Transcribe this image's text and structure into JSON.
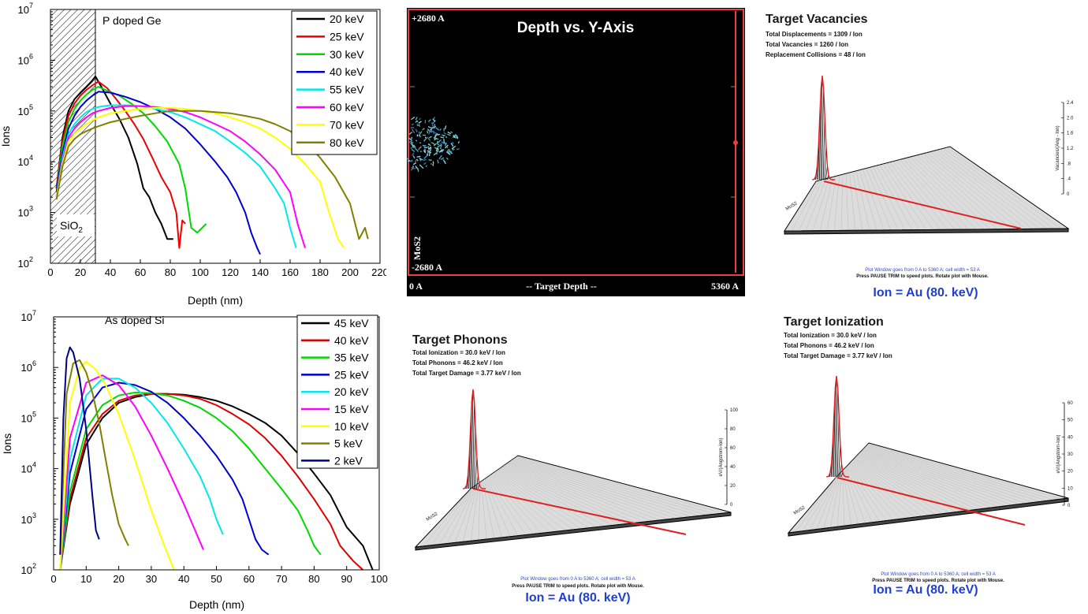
{
  "chart_data": [
    {
      "type": "line",
      "id": "ge",
      "annotation": "P doped Ge",
      "region_label": "SiO",
      "region_label_sub": "2",
      "region_end": 30,
      "xlabel": "Depth (nm)",
      "ylabel": "Ions",
      "xlim": [
        0,
        220
      ],
      "ylim": [
        100,
        10000000
      ],
      "yscale": "log",
      "x_ticks": [
        "0",
        "20",
        "40",
        "60",
        "80",
        "100",
        "120",
        "140",
        "160",
        "180",
        "200",
        "220"
      ],
      "y_ticks": [
        {
          "base": "10",
          "exp": "2"
        },
        {
          "base": "10",
          "exp": "3"
        },
        {
          "base": "10",
          "exp": "4"
        },
        {
          "base": "10",
          "exp": "5"
        },
        {
          "base": "10",
          "exp": "6"
        },
        {
          "base": "10",
          "exp": "7"
        }
      ],
      "legend_position": "top-right",
      "series": [
        {
          "name": "20 keV",
          "color": "#000000",
          "x": [
            4,
            8,
            12,
            16,
            20,
            24,
            28,
            30,
            34,
            40,
            46,
            52,
            58,
            62,
            66,
            70,
            74,
            78,
            82
          ],
          "y": [
            3000,
            30000,
            100000,
            170000,
            230000,
            300000,
            400000,
            480000,
            300000,
            140000,
            70000,
            30000,
            9000,
            3000,
            2000,
            1000,
            600,
            300,
            300
          ]
        },
        {
          "name": "25 keV",
          "color": "#ee0000",
          "x": [
            4,
            8,
            12,
            16,
            20,
            24,
            28,
            32,
            38,
            44,
            50,
            56,
            62,
            68,
            74,
            80,
            84,
            86,
            88,
            90
          ],
          "y": [
            3000,
            25000,
            80000,
            140000,
            200000,
            260000,
            320000,
            380000,
            280000,
            170000,
            100000,
            55000,
            28000,
            12000,
            5000,
            2500,
            1000,
            200,
            700,
            600
          ]
        },
        {
          "name": "30 keV",
          "color": "#00d800",
          "x": [
            4,
            8,
            12,
            16,
            20,
            24,
            28,
            32,
            38,
            46,
            54,
            62,
            70,
            78,
            86,
            90,
            94,
            98,
            104
          ],
          "y": [
            2500,
            20000,
            60000,
            110000,
            160000,
            210000,
            260000,
            300000,
            250000,
            200000,
            140000,
            90000,
            50000,
            25000,
            9000,
            3000,
            500,
            400,
            600
          ]
        },
        {
          "name": "40 keV",
          "color": "#0000cc",
          "x": [
            4,
            8,
            12,
            16,
            20,
            24,
            28,
            32,
            40,
            50,
            60,
            70,
            80,
            90,
            100,
            110,
            118,
            124,
            130,
            134,
            138,
            140
          ],
          "y": [
            2500,
            15000,
            45000,
            80000,
            120000,
            160000,
            200000,
            240000,
            230000,
            190000,
            150000,
            110000,
            75000,
            45000,
            22000,
            10000,
            5000,
            2500,
            1000,
            400,
            200,
            150
          ]
        },
        {
          "name": "55 keV",
          "color": "#00e8e8",
          "x": [
            4,
            8,
            12,
            16,
            20,
            24,
            28,
            32,
            40,
            50,
            60,
            70,
            80,
            90,
            100,
            110,
            120,
            130,
            140,
            150,
            156,
            160,
            164
          ],
          "y": [
            2000,
            12000,
            35000,
            55000,
            75000,
            95000,
            110000,
            120000,
            130000,
            130000,
            125000,
            110000,
            95000,
            75000,
            55000,
            40000,
            25000,
            15000,
            8000,
            3000,
            1500,
            500,
            200
          ]
        },
        {
          "name": "60 keV",
          "color": "#ff00ff",
          "x": [
            4,
            8,
            12,
            16,
            20,
            24,
            28,
            32,
            40,
            50,
            60,
            70,
            80,
            90,
            100,
            110,
            120,
            130,
            140,
            150,
            160,
            165,
            170
          ],
          "y": [
            2000,
            10000,
            30000,
            45000,
            60000,
            75000,
            90000,
            100000,
            115000,
            125000,
            125000,
            120000,
            110000,
            95000,
            75000,
            55000,
            40000,
            25000,
            14000,
            7000,
            2500,
            600,
            200
          ]
        },
        {
          "name": "70 keV",
          "color": "#ffff00",
          "x": [
            4,
            8,
            12,
            16,
            20,
            24,
            28,
            32,
            40,
            50,
            60,
            70,
            80,
            90,
            100,
            110,
            120,
            130,
            140,
            150,
            160,
            170,
            180,
            186,
            192,
            196
          ],
          "y": [
            2000,
            9000,
            25000,
            35000,
            45000,
            55000,
            65000,
            75000,
            90000,
            100000,
            110000,
            115000,
            115000,
            110000,
            100000,
            90000,
            75000,
            60000,
            45000,
            30000,
            18000,
            9000,
            4000,
            1000,
            300,
            200
          ]
        },
        {
          "name": "80 keV",
          "color": "#808000",
          "x": [
            4,
            8,
            12,
            16,
            20,
            24,
            28,
            32,
            40,
            50,
            60,
            70,
            80,
            90,
            100,
            110,
            120,
            130,
            140,
            150,
            160,
            170,
            180,
            190,
            200,
            206,
            210,
            212
          ],
          "y": [
            1800,
            8000,
            20000,
            28000,
            35000,
            40000,
            45000,
            50000,
            60000,
            70000,
            80000,
            90000,
            100000,
            100000,
            100000,
            95000,
            90000,
            80000,
            70000,
            55000,
            40000,
            25000,
            12000,
            5000,
            1500,
            300,
            500,
            300
          ]
        }
      ]
    },
    {
      "type": "line",
      "id": "si",
      "annotation": "As doped Si",
      "xlabel": "Depth (nm)",
      "ylabel": "Ions",
      "xlim": [
        0,
        100
      ],
      "ylim": [
        100,
        10000000
      ],
      "yscale": "log",
      "x_ticks": [
        "0",
        "10",
        "20",
        "30",
        "40",
        "50",
        "60",
        "70",
        "80",
        "90",
        "100"
      ],
      "y_ticks": [
        {
          "base": "10",
          "exp": "2"
        },
        {
          "base": "10",
          "exp": "3"
        },
        {
          "base": "10",
          "exp": "4"
        },
        {
          "base": "10",
          "exp": "5"
        },
        {
          "base": "10",
          "exp": "6"
        },
        {
          "base": "10",
          "exp": "7"
        }
      ],
      "legend_position": "top-right",
      "series": [
        {
          "name": "45 keV",
          "color": "#000000",
          "x": [
            2,
            5,
            10,
            15,
            20,
            25,
            30,
            35,
            40,
            45,
            50,
            55,
            60,
            65,
            70,
            75,
            80,
            85,
            90,
            95,
            98
          ],
          "y": [
            100,
            2000,
            30000,
            100000,
            200000,
            260000,
            300000,
            300000,
            290000,
            260000,
            220000,
            170000,
            120000,
            80000,
            45000,
            20000,
            8000,
            3000,
            700,
            300,
            100
          ]
        },
        {
          "name": "40 keV",
          "color": "#dd0000",
          "x": [
            2,
            5,
            10,
            15,
            20,
            25,
            30,
            35,
            40,
            45,
            50,
            55,
            60,
            65,
            70,
            75,
            80,
            85,
            88,
            92,
            95
          ],
          "y": [
            100,
            2500,
            40000,
            120000,
            220000,
            280000,
            300000,
            300000,
            280000,
            240000,
            180000,
            120000,
            75000,
            40000,
            18000,
            7000,
            2500,
            800,
            300,
            150,
            100
          ]
        },
        {
          "name": "35 keV",
          "color": "#00d800",
          "x": [
            2,
            5,
            10,
            15,
            20,
            25,
            30,
            35,
            40,
            45,
            50,
            55,
            60,
            65,
            70,
            75,
            78,
            80,
            82
          ],
          "y": [
            100,
            3500,
            60000,
            180000,
            280000,
            320000,
            310000,
            280000,
            220000,
            160000,
            100000,
            55000,
            25000,
            10000,
            4000,
            1500,
            600,
            300,
            200
          ]
        },
        {
          "name": "25 keV",
          "color": "#0000cc",
          "x": [
            2,
            5,
            10,
            15,
            20,
            25,
            30,
            35,
            40,
            45,
            50,
            55,
            58,
            60,
            62,
            64,
            66
          ],
          "y": [
            100,
            8000,
            150000,
            400000,
            500000,
            450000,
            330000,
            200000,
            100000,
            45000,
            18000,
            6000,
            2500,
            1000,
            400,
            250,
            200
          ]
        },
        {
          "name": "20 keV",
          "color": "#00e8e8",
          "x": [
            2,
            5,
            10,
            15,
            20,
            25,
            30,
            35,
            40,
            45,
            48,
            50,
            52
          ],
          "y": [
            100,
            15000,
            280000,
            600000,
            600000,
            400000,
            200000,
            80000,
            25000,
            7000,
            2500,
            1000,
            500
          ]
        },
        {
          "name": "15 keV",
          "color": "#ff00ff",
          "x": [
            2,
            5,
            10,
            15,
            20,
            25,
            30,
            35,
            40,
            44,
            46
          ],
          "y": [
            100,
            40000,
            500000,
            700000,
            450000,
            170000,
            45000,
            10000,
            2000,
            500,
            250
          ]
        },
        {
          "name": "10 keV",
          "color": "#ffff00",
          "x": [
            2,
            5,
            8,
            10,
            13,
            16,
            20,
            25,
            30,
            34,
            37
          ],
          "y": [
            100,
            200000,
            1000000,
            1300000,
            900000,
            450000,
            120000,
            15000,
            1500,
            300,
            100
          ]
        },
        {
          "name": "5 keV",
          "color": "#808000",
          "x": [
            2,
            4,
            6,
            8,
            10,
            12,
            14,
            16,
            18,
            20,
            22,
            23
          ],
          "y": [
            200,
            300000,
            1200000,
            1400000,
            800000,
            300000,
            80000,
            15000,
            3000,
            800,
            400,
            300
          ]
        },
        {
          "name": "2 keV",
          "color": "#000080",
          "x": [
            2,
            3,
            4,
            5,
            6,
            8,
            10,
            12,
            13,
            14
          ],
          "y": [
            200,
            100000,
            1500000,
            2500000,
            2000000,
            600000,
            60000,
            2500,
            600,
            400
          ]
        }
      ]
    }
  ],
  "depth_plot": {
    "title": "Depth vs. Y-Axis",
    "top_label": "+2680 A",
    "bottom_label": "-2680 A",
    "layer_label": "MoS2",
    "x_left": "0 A",
    "x_mid": "-- Target Depth --",
    "x_right": "5360 A"
  },
  "trim_panels": [
    {
      "id": "vacancies",
      "title": "Target Vacancies",
      "lines": [
        "Total Displacements = 1309 / Ion",
        "Total Vacancies = 1260 / Ion",
        "Replacement Collisions = 48 / Ion"
      ],
      "axis_label": "Vacancies/(Ang - Ion)",
      "ticks": [
        "0",
        ".4",
        ".8",
        "1.2",
        "1.6",
        "2.0",
        "2.4"
      ],
      "layer_label": "MoS2",
      "footer1": "Plot Window goes from 0 A to 5360 A;  cell width = 53 A",
      "footer2": "Press PAUSE TRIM to speed plots.    Rotate plot with Mouse.",
      "ion": "Ion = Au (80. keV)"
    },
    {
      "id": "phonons",
      "title": "Target Phonons",
      "lines": [
        "Total Ionization = 30.0 keV / Ion",
        "Total Phonons = 46.2 keV / Ion",
        "Total Target Damage = 3.77 keV / Ion"
      ],
      "axis_label": "eV/(Angstrom-Ion)",
      "ticks": [
        "0",
        "20",
        "40",
        "60",
        "80",
        "100"
      ],
      "layer_label": "MoS2",
      "footer1": "Plot Window goes from 0 A to 5360 A;  cell width = 53 A",
      "footer2": "Press PAUSE TRIM to speed plots.    Rotate plot with Mouse.",
      "ion": "Ion = Au (80. keV)"
    },
    {
      "id": "ionization",
      "title": "Target Ionization",
      "lines": [
        "Total Ionization = 30.0 keV / Ion",
        "Total Phonons = 46.2 keV / Ion",
        "Total Target Damage = 3.77 keV / Ion"
      ],
      "axis_label": "eV/(Angstrom-Ion)",
      "ticks": [
        "0",
        "10",
        "20",
        "30",
        "40",
        "50",
        "60"
      ],
      "layer_label": "MoS2",
      "footer1": "Plot Window goes from 0 A to 5360 A;  cell width = 53 A",
      "footer2": "Press PAUSE TRIM to speed plots.    Rotate plot with Mouse.",
      "ion": "Ion = Au (80. keV)"
    }
  ]
}
